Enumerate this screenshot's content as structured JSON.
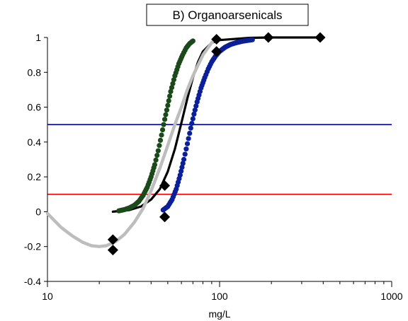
{
  "chart_data": {
    "type": "scatter",
    "title": "B) Organoarsenicals",
    "xlabel": "mg/L",
    "ylabel": "",
    "x_scale": "log",
    "xlim": [
      10,
      1000
    ],
    "ylim": [
      -0.4,
      1
    ],
    "x_ticks": [
      "10",
      "100",
      "1000"
    ],
    "y_ticks": [
      "-0.4",
      "-0.2",
      "0",
      "0.2",
      "0.4",
      "0.6",
      "0.8",
      "1"
    ],
    "grid": false,
    "legend": "none",
    "reference_lines": [
      {
        "y": 0.5,
        "color": "#0000cc",
        "x_range": [
          10,
          1000
        ]
      },
      {
        "y": 0.1,
        "color": "#ff0000",
        "x_range": [
          10,
          1000
        ]
      }
    ],
    "series": [
      {
        "color": "#000000",
        "marker": "diamond",
        "points": [
          {
            "x": 24,
            "y": -0.16
          },
          {
            "x": 24,
            "y": -0.22
          },
          {
            "x": 48,
            "y": 0.15
          },
          {
            "x": 48,
            "y": -0.03
          },
          {
            "x": 96,
            "y": 0.92
          },
          {
            "x": 96,
            "y": 0.99
          },
          {
            "x": 192,
            "y": 1.0
          },
          {
            "x": 384,
            "y": 1.0
          }
        ]
      },
      {
        "color": "#000000",
        "type": "line",
        "points": [
          {
            "x": 24,
            "y": 0.0
          },
          {
            "x": 30,
            "y": 0.01
          },
          {
            "x": 35,
            "y": 0.03
          },
          {
            "x": 40,
            "y": 0.07
          },
          {
            "x": 45,
            "y": 0.13
          },
          {
            "x": 50,
            "y": 0.23
          },
          {
            "x": 55,
            "y": 0.36
          },
          {
            "x": 60,
            "y": 0.51
          },
          {
            "x": 65,
            "y": 0.65
          },
          {
            "x": 70,
            "y": 0.77
          },
          {
            "x": 75,
            "y": 0.86
          },
          {
            "x": 80,
            "y": 0.92
          },
          {
            "x": 90,
            "y": 0.97
          },
          {
            "x": 100,
            "y": 0.985
          },
          {
            "x": 150,
            "y": 0.998
          },
          {
            "x": 200,
            "y": 1.0
          },
          {
            "x": 384,
            "y": 1.0
          }
        ]
      },
      {
        "color": "#1a4a1a",
        "type": "dense-dots",
        "points": [
          {
            "x": 26,
            "y": 0.005
          },
          {
            "x": 28,
            "y": 0.012
          },
          {
            "x": 30,
            "y": 0.022
          },
          {
            "x": 32,
            "y": 0.037
          },
          {
            "x": 34,
            "y": 0.06
          },
          {
            "x": 36,
            "y": 0.095
          },
          {
            "x": 38,
            "y": 0.14
          },
          {
            "x": 40,
            "y": 0.2
          },
          {
            "x": 42,
            "y": 0.27
          },
          {
            "x": 44,
            "y": 0.35
          },
          {
            "x": 46,
            "y": 0.44
          },
          {
            "x": 48,
            "y": 0.53
          },
          {
            "x": 50,
            "y": 0.61
          },
          {
            "x": 52,
            "y": 0.69
          },
          {
            "x": 55,
            "y": 0.78
          },
          {
            "x": 58,
            "y": 0.85
          },
          {
            "x": 61,
            "y": 0.9
          },
          {
            "x": 64,
            "y": 0.94
          },
          {
            "x": 67,
            "y": 0.965
          },
          {
            "x": 70,
            "y": 0.98
          }
        ]
      },
      {
        "color": "#0a1f99",
        "type": "dense-dots",
        "points": [
          {
            "x": 47,
            "y": 0.01
          },
          {
            "x": 50,
            "y": 0.03
          },
          {
            "x": 53,
            "y": 0.07
          },
          {
            "x": 56,
            "y": 0.13
          },
          {
            "x": 59,
            "y": 0.21
          },
          {
            "x": 62,
            "y": 0.3
          },
          {
            "x": 65,
            "y": 0.39
          },
          {
            "x": 68,
            "y": 0.48
          },
          {
            "x": 71,
            "y": 0.56
          },
          {
            "x": 74,
            "y": 0.63
          },
          {
            "x": 78,
            "y": 0.71
          },
          {
            "x": 82,
            "y": 0.77
          },
          {
            "x": 86,
            "y": 0.82
          },
          {
            "x": 90,
            "y": 0.86
          },
          {
            "x": 95,
            "y": 0.895
          },
          {
            "x": 100,
            "y": 0.92
          },
          {
            "x": 108,
            "y": 0.945
          },
          {
            "x": 116,
            "y": 0.96
          },
          {
            "x": 125,
            "y": 0.97
          },
          {
            "x": 135,
            "y": 0.978
          },
          {
            "x": 145,
            "y": 0.983
          },
          {
            "x": 155,
            "y": 0.987
          }
        ]
      },
      {
        "color": "#bdbdbd",
        "type": "line",
        "points": [
          {
            "x": 10,
            "y": -0.01
          },
          {
            "x": 12,
            "y": -0.09
          },
          {
            "x": 14,
            "y": -0.14
          },
          {
            "x": 16,
            "y": -0.175
          },
          {
            "x": 18,
            "y": -0.195
          },
          {
            "x": 20,
            "y": -0.2
          },
          {
            "x": 22,
            "y": -0.195
          },
          {
            "x": 25,
            "y": -0.17
          },
          {
            "x": 28,
            "y": -0.13
          },
          {
            "x": 32,
            "y": -0.06
          },
          {
            "x": 36,
            "y": 0.02
          },
          {
            "x": 40,
            "y": 0.12
          },
          {
            "x": 45,
            "y": 0.25
          },
          {
            "x": 50,
            "y": 0.38
          },
          {
            "x": 55,
            "y": 0.5
          },
          {
            "x": 60,
            "y": 0.6
          },
          {
            "x": 65,
            "y": 0.7
          },
          {
            "x": 70,
            "y": 0.78
          },
          {
            "x": 80,
            "y": 0.9
          },
          {
            "x": 90,
            "y": 0.97
          },
          {
            "x": 96,
            "y": 1.0
          }
        ]
      }
    ]
  }
}
